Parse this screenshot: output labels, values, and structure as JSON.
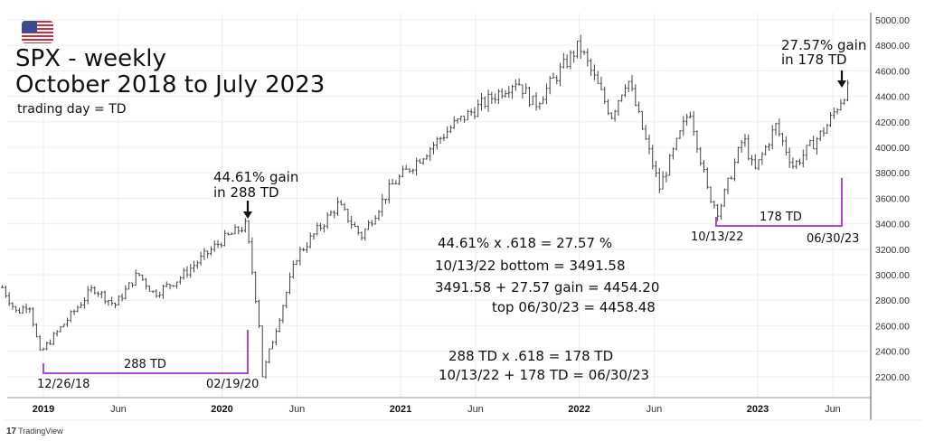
{
  "header": {
    "flag_icon": "us-flag-icon",
    "title_line1": "SPX - weekly",
    "title_line2": "October 2018 to July 2023",
    "subtitle": "trading day = TD"
  },
  "annotations": {
    "gain1_line1": "44.61% gain",
    "gain1_line2": "in 288 TD",
    "gain2_line1": "27.57% gain",
    "gain2_line2": "in 178 TD",
    "bracket1_label": "288 TD",
    "bracket1_start": "12/26/18",
    "bracket1_end": "02/19/20",
    "bracket2_label": "178 TD",
    "bracket2_start": "10/13/22",
    "bracket2_end": "06/30/23",
    "calc1": "44.61% x .618 = 27.57 %",
    "calc2": "10/13/22 bottom = 3491.58",
    "calc3": "3491.58 + 27.57 gain = 4454.20",
    "calc4": "top 06/30/23 = 4458.48",
    "calc5": "288 TD x .618 = 178 TD",
    "calc6": "10/13/22 + 178 TD = 06/30/23",
    "bracket_color": "#b04bc8"
  },
  "footer": {
    "brand": "TradingView"
  },
  "chart_data": {
    "type": "ohlc",
    "title": "SPX - weekly",
    "xlabel": "",
    "ylabel": "",
    "ylim": [
      2050,
      5000
    ],
    "y_ticks": [
      "5000.00",
      "4800.00",
      "4600.00",
      "4400.00",
      "4200.00",
      "4000.00",
      "3800.00",
      "3600.00",
      "3400.00",
      "3200.00",
      "3000.00",
      "2800.00",
      "2600.00",
      "2400.00",
      "2200.00"
    ],
    "x_ticks": [
      {
        "label": "2019",
        "t": 2019.0,
        "year": true
      },
      {
        "label": "Jun",
        "t": 2019.42,
        "year": false
      },
      {
        "label": "2020",
        "t": 2020.0,
        "year": true
      },
      {
        "label": "Jun",
        "t": 2020.42,
        "year": false
      },
      {
        "label": "2021",
        "t": 2021.0,
        "year": true
      },
      {
        "label": "Jun",
        "t": 2021.42,
        "year": false
      },
      {
        "label": "2022",
        "t": 2022.0,
        "year": true
      },
      {
        "label": "Jun",
        "t": 2022.42,
        "year": false
      },
      {
        "label": "2023",
        "t": 2023.0,
        "year": true
      },
      {
        "label": "Jun",
        "t": 2023.42,
        "year": false
      }
    ],
    "xlim": [
      2018.77,
      2023.95
    ],
    "approx_weekly_path": [
      [
        2018.77,
        2900
      ],
      [
        2018.85,
        2700
      ],
      [
        2018.92,
        2780
      ],
      [
        2018.98,
        2380
      ],
      [
        2019.28,
        2900
      ],
      [
        2019.4,
        2760
      ],
      [
        2019.53,
        3010
      ],
      [
        2019.62,
        2850
      ],
      [
        2019.75,
        2960
      ],
      [
        2020.0,
        3270
      ],
      [
        2020.135,
        3390
      ],
      [
        2020.22,
        2480
      ],
      [
        2020.225,
        2200
      ],
      [
        2020.42,
        3150
      ],
      [
        2020.65,
        3550
      ],
      [
        2020.78,
        3300
      ],
      [
        2020.95,
        3700
      ],
      [
        2021.3,
        4180
      ],
      [
        2021.65,
        4530
      ],
      [
        2021.75,
        4330
      ],
      [
        2022.0,
        4800
      ],
      [
        2022.18,
        4250
      ],
      [
        2022.27,
        4550
      ],
      [
        2022.45,
        3680
      ],
      [
        2022.62,
        4300
      ],
      [
        2022.72,
        3650
      ],
      [
        2022.78,
        3491
      ],
      [
        2022.92,
        4080
      ],
      [
        2022.98,
        3800
      ],
      [
        2023.1,
        4170
      ],
      [
        2023.2,
        3850
      ],
      [
        2023.38,
        4150
      ],
      [
        2023.495,
        4450
      ],
      [
        2023.52,
        4460
      ]
    ]
  }
}
